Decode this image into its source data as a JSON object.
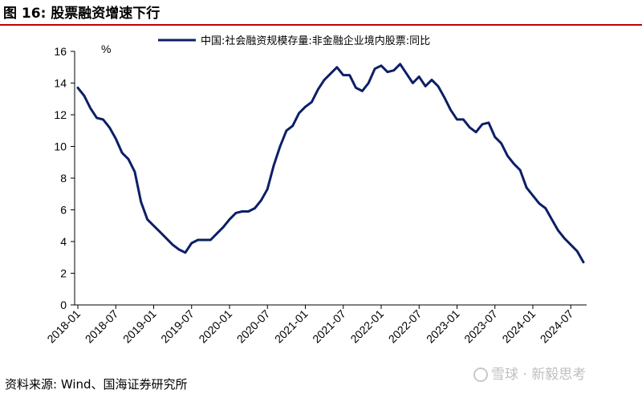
{
  "figure": {
    "title": "图 16:  股票融资增速下行",
    "source": "资料来源:  Wind、国海证券研究所",
    "watermark": "雪球 · 新毅思考"
  },
  "chart_data": {
    "type": "line",
    "title": "",
    "xlabel": "",
    "ylabel": "%",
    "ylim": [
      0,
      16
    ],
    "yticks": [
      0,
      2,
      4,
      6,
      8,
      10,
      12,
      14,
      16
    ],
    "xticks": [
      "2018-01",
      "2018-07",
      "2019-01",
      "2019-07",
      "2020-01",
      "2020-07",
      "2021-01",
      "2021-07",
      "2022-01",
      "2022-07",
      "2023-01",
      "2023-07",
      "2024-01",
      "2024-07"
    ],
    "grid": false,
    "legend": "top",
    "series": [
      {
        "name": "中国:社会融资规模存量:非金融企业境内股票:同比",
        "color": "#0b1f66",
        "x": [
          "2018-01",
          "2018-02",
          "2018-03",
          "2018-04",
          "2018-05",
          "2018-06",
          "2018-07",
          "2018-08",
          "2018-09",
          "2018-10",
          "2018-11",
          "2018-12",
          "2019-01",
          "2019-02",
          "2019-03",
          "2019-04",
          "2019-05",
          "2019-06",
          "2019-07",
          "2019-08",
          "2019-09",
          "2019-10",
          "2019-11",
          "2019-12",
          "2020-01",
          "2020-02",
          "2020-03",
          "2020-04",
          "2020-05",
          "2020-06",
          "2020-07",
          "2020-08",
          "2020-09",
          "2020-10",
          "2020-11",
          "2020-12",
          "2021-01",
          "2021-02",
          "2021-03",
          "2021-04",
          "2021-05",
          "2021-06",
          "2021-07",
          "2021-08",
          "2021-09",
          "2021-10",
          "2021-11",
          "2021-12",
          "2022-01",
          "2022-02",
          "2022-03",
          "2022-04",
          "2022-05",
          "2022-06",
          "2022-07",
          "2022-08",
          "2022-09",
          "2022-10",
          "2022-11",
          "2022-12",
          "2023-01",
          "2023-02",
          "2023-03",
          "2023-04",
          "2023-05",
          "2023-06",
          "2023-07",
          "2023-08",
          "2023-09",
          "2023-10",
          "2023-11",
          "2023-12",
          "2024-01",
          "2024-02",
          "2024-03",
          "2024-04",
          "2024-05",
          "2024-06",
          "2024-07",
          "2024-08",
          "2024-09"
        ],
        "values": [
          13.7,
          13.2,
          12.4,
          11.8,
          11.7,
          11.2,
          10.5,
          9.6,
          9.2,
          8.4,
          6.5,
          5.4,
          5.0,
          4.6,
          4.2,
          3.8,
          3.5,
          3.3,
          3.9,
          4.1,
          4.1,
          4.1,
          4.5,
          4.9,
          5.4,
          5.8,
          5.9,
          5.9,
          6.1,
          6.6,
          7.3,
          8.8,
          10.0,
          11.0,
          11.3,
          12.1,
          12.5,
          12.8,
          13.6,
          14.2,
          14.6,
          15.0,
          14.5,
          14.5,
          13.7,
          13.5,
          14.0,
          14.9,
          15.1,
          14.7,
          14.8,
          15.2,
          14.6,
          14.0,
          14.4,
          13.8,
          14.2,
          13.8,
          13.1,
          12.3,
          11.7,
          11.7,
          11.2,
          10.9,
          11.4,
          11.5,
          10.6,
          10.2,
          9.4,
          8.9,
          8.5,
          7.4,
          6.9,
          6.4,
          6.1,
          5.4,
          4.7,
          4.2,
          3.8,
          3.4,
          2.7
        ]
      }
    ]
  }
}
